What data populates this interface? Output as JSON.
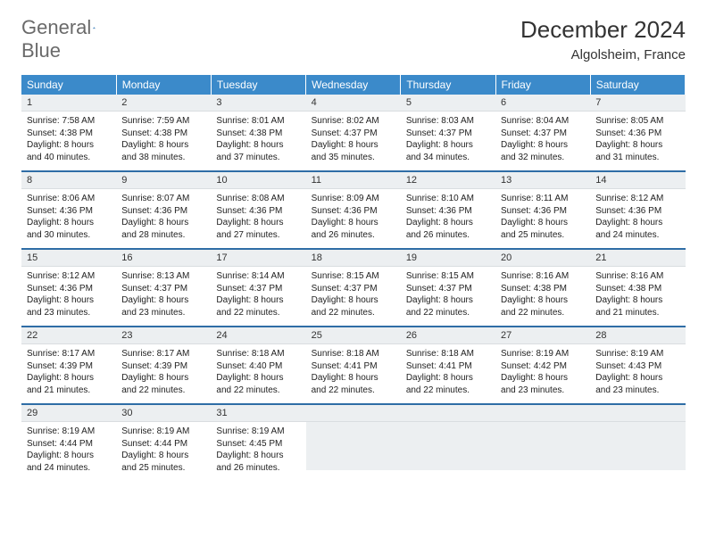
{
  "brand": {
    "word1": "General",
    "word2": "Blue"
  },
  "title": "December 2024",
  "location": "Algolsheim, France",
  "colors": {
    "header_bg": "#3b8aca",
    "header_text": "#ffffff",
    "daynum_bg": "#eceff1",
    "row_divider": "#2f6da6",
    "brand_gray": "#6a6a6a",
    "brand_blue": "#2f7abf",
    "body_text": "#222222",
    "page_bg": "#ffffff"
  },
  "typography": {
    "title_fontsize": 26,
    "location_fontsize": 15,
    "weekday_fontsize": 12,
    "daynum_fontsize": 11,
    "body_fontsize": 10
  },
  "weekdays": [
    "Sunday",
    "Monday",
    "Tuesday",
    "Wednesday",
    "Thursday",
    "Friday",
    "Saturday"
  ],
  "weeks": [
    [
      {
        "num": "1",
        "sunrise": "Sunrise: 7:58 AM",
        "sunset": "Sunset: 4:38 PM",
        "daylight": "Daylight: 8 hours and 40 minutes."
      },
      {
        "num": "2",
        "sunrise": "Sunrise: 7:59 AM",
        "sunset": "Sunset: 4:38 PM",
        "daylight": "Daylight: 8 hours and 38 minutes."
      },
      {
        "num": "3",
        "sunrise": "Sunrise: 8:01 AM",
        "sunset": "Sunset: 4:38 PM",
        "daylight": "Daylight: 8 hours and 37 minutes."
      },
      {
        "num": "4",
        "sunrise": "Sunrise: 8:02 AM",
        "sunset": "Sunset: 4:37 PM",
        "daylight": "Daylight: 8 hours and 35 minutes."
      },
      {
        "num": "5",
        "sunrise": "Sunrise: 8:03 AM",
        "sunset": "Sunset: 4:37 PM",
        "daylight": "Daylight: 8 hours and 34 minutes."
      },
      {
        "num": "6",
        "sunrise": "Sunrise: 8:04 AM",
        "sunset": "Sunset: 4:37 PM",
        "daylight": "Daylight: 8 hours and 32 minutes."
      },
      {
        "num": "7",
        "sunrise": "Sunrise: 8:05 AM",
        "sunset": "Sunset: 4:36 PM",
        "daylight": "Daylight: 8 hours and 31 minutes."
      }
    ],
    [
      {
        "num": "8",
        "sunrise": "Sunrise: 8:06 AM",
        "sunset": "Sunset: 4:36 PM",
        "daylight": "Daylight: 8 hours and 30 minutes."
      },
      {
        "num": "9",
        "sunrise": "Sunrise: 8:07 AM",
        "sunset": "Sunset: 4:36 PM",
        "daylight": "Daylight: 8 hours and 28 minutes."
      },
      {
        "num": "10",
        "sunrise": "Sunrise: 8:08 AM",
        "sunset": "Sunset: 4:36 PM",
        "daylight": "Daylight: 8 hours and 27 minutes."
      },
      {
        "num": "11",
        "sunrise": "Sunrise: 8:09 AM",
        "sunset": "Sunset: 4:36 PM",
        "daylight": "Daylight: 8 hours and 26 minutes."
      },
      {
        "num": "12",
        "sunrise": "Sunrise: 8:10 AM",
        "sunset": "Sunset: 4:36 PM",
        "daylight": "Daylight: 8 hours and 26 minutes."
      },
      {
        "num": "13",
        "sunrise": "Sunrise: 8:11 AM",
        "sunset": "Sunset: 4:36 PM",
        "daylight": "Daylight: 8 hours and 25 minutes."
      },
      {
        "num": "14",
        "sunrise": "Sunrise: 8:12 AM",
        "sunset": "Sunset: 4:36 PM",
        "daylight": "Daylight: 8 hours and 24 minutes."
      }
    ],
    [
      {
        "num": "15",
        "sunrise": "Sunrise: 8:12 AM",
        "sunset": "Sunset: 4:36 PM",
        "daylight": "Daylight: 8 hours and 23 minutes."
      },
      {
        "num": "16",
        "sunrise": "Sunrise: 8:13 AM",
        "sunset": "Sunset: 4:37 PM",
        "daylight": "Daylight: 8 hours and 23 minutes."
      },
      {
        "num": "17",
        "sunrise": "Sunrise: 8:14 AM",
        "sunset": "Sunset: 4:37 PM",
        "daylight": "Daylight: 8 hours and 22 minutes."
      },
      {
        "num": "18",
        "sunrise": "Sunrise: 8:15 AM",
        "sunset": "Sunset: 4:37 PM",
        "daylight": "Daylight: 8 hours and 22 minutes."
      },
      {
        "num": "19",
        "sunrise": "Sunrise: 8:15 AM",
        "sunset": "Sunset: 4:37 PM",
        "daylight": "Daylight: 8 hours and 22 minutes."
      },
      {
        "num": "20",
        "sunrise": "Sunrise: 8:16 AM",
        "sunset": "Sunset: 4:38 PM",
        "daylight": "Daylight: 8 hours and 22 minutes."
      },
      {
        "num": "21",
        "sunrise": "Sunrise: 8:16 AM",
        "sunset": "Sunset: 4:38 PM",
        "daylight": "Daylight: 8 hours and 21 minutes."
      }
    ],
    [
      {
        "num": "22",
        "sunrise": "Sunrise: 8:17 AM",
        "sunset": "Sunset: 4:39 PM",
        "daylight": "Daylight: 8 hours and 21 minutes."
      },
      {
        "num": "23",
        "sunrise": "Sunrise: 8:17 AM",
        "sunset": "Sunset: 4:39 PM",
        "daylight": "Daylight: 8 hours and 22 minutes."
      },
      {
        "num": "24",
        "sunrise": "Sunrise: 8:18 AM",
        "sunset": "Sunset: 4:40 PM",
        "daylight": "Daylight: 8 hours and 22 minutes."
      },
      {
        "num": "25",
        "sunrise": "Sunrise: 8:18 AM",
        "sunset": "Sunset: 4:41 PM",
        "daylight": "Daylight: 8 hours and 22 minutes."
      },
      {
        "num": "26",
        "sunrise": "Sunrise: 8:18 AM",
        "sunset": "Sunset: 4:41 PM",
        "daylight": "Daylight: 8 hours and 22 minutes."
      },
      {
        "num": "27",
        "sunrise": "Sunrise: 8:19 AM",
        "sunset": "Sunset: 4:42 PM",
        "daylight": "Daylight: 8 hours and 23 minutes."
      },
      {
        "num": "28",
        "sunrise": "Sunrise: 8:19 AM",
        "sunset": "Sunset: 4:43 PM",
        "daylight": "Daylight: 8 hours and 23 minutes."
      }
    ],
    [
      {
        "num": "29",
        "sunrise": "Sunrise: 8:19 AM",
        "sunset": "Sunset: 4:44 PM",
        "daylight": "Daylight: 8 hours and 24 minutes."
      },
      {
        "num": "30",
        "sunrise": "Sunrise: 8:19 AM",
        "sunset": "Sunset: 4:44 PM",
        "daylight": "Daylight: 8 hours and 25 minutes."
      },
      {
        "num": "31",
        "sunrise": "Sunrise: 8:19 AM",
        "sunset": "Sunset: 4:45 PM",
        "daylight": "Daylight: 8 hours and 26 minutes."
      },
      null,
      null,
      null,
      null
    ]
  ]
}
